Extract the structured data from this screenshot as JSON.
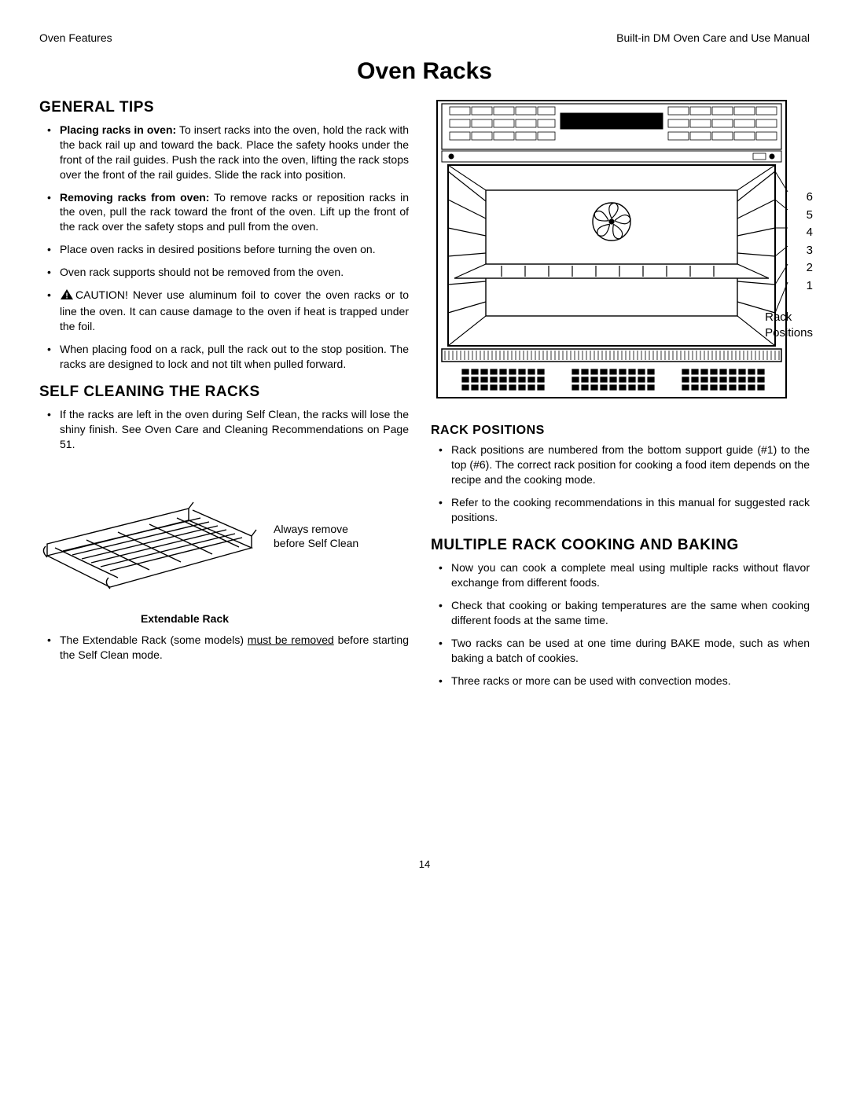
{
  "header": {
    "left": "Oven Features",
    "right": "Built-in DM Oven Care and Use Manual"
  },
  "title": "Oven  Racks",
  "page_number": "14",
  "colors": {
    "text": "#000000",
    "background": "#ffffff"
  },
  "left": {
    "general_tips": {
      "heading": "GENERAL  TIPS",
      "items": [
        {
          "bold": "Placing racks in oven:",
          "rest": "  To insert racks into the oven, hold the rack with the back rail up and toward the back.  Place the safety hooks under the front of the rail guides.  Push the rack into the oven, lifting the rack stops over the front of the rail guides. Slide the rack into position."
        },
        {
          "bold": "Removing racks from oven:",
          "rest": "  To remove racks or reposition racks in the oven, pull the rack toward the front of the oven.  Lift up the front of the rack over the safety stops and pull from the oven."
        },
        {
          "rest": "Place oven racks in desired positions before turning the oven on."
        },
        {
          "rest": "Oven rack supports should not be removed from the oven."
        },
        {
          "caution": true,
          "rest": "CAUTION!  Never use aluminum foil to cover the oven racks or to line the oven.  It can cause damage to the oven if heat is trapped under the foil."
        },
        {
          "rest": "When placing food on a rack, pull the rack out to the stop position. The racks are designed to lock and not tilt when pulled forward."
        }
      ]
    },
    "self_clean": {
      "heading": "SELF  CLEANING  THE  RACKS",
      "items": [
        {
          "rest": "If the racks are left in the oven during Self Clean, the racks will lose the shiny finish.  See Oven Care and Cleaning Recommendations on Page 51."
        }
      ]
    },
    "ext_rack": {
      "note": "Always remove before Self Clean",
      "caption": "Extendable Rack",
      "items": [
        {
          "pre": "The Extendable Rack (some models) ",
          "underline": "must be removed",
          "post": " before starting the Self Clean mode."
        }
      ]
    }
  },
  "right": {
    "rack_numbers": [
      "6",
      "5",
      "4",
      "3",
      "2",
      "1"
    ],
    "rack_pos_label": "Rack\nPositions",
    "rack_positions": {
      "heading": "RACK POSITIONS",
      "items": [
        {
          "rest": "Rack positions are numbered from the bottom support guide (#1) to the top (#6).  The correct rack position for cooking a food item depends on the recipe and the cooking mode."
        },
        {
          "rest": "Refer to the cooking recommendations in this manual for suggested rack positions."
        }
      ]
    },
    "multi_rack": {
      "heading": "MULTIPLE  RACK  COOKING  AND BAKING",
      "items": [
        {
          "rest": "Now you can cook a complete meal using multiple racks without flavor exchange from different foods."
        },
        {
          "rest": "Check that cooking or baking temperatures are the same when cooking different foods at the same time."
        },
        {
          "rest": "Two racks can be used at one time during BAKE mode, such as when baking a batch of cookies."
        },
        {
          "rest": "Three racks or more can be used with convection modes."
        }
      ]
    }
  }
}
